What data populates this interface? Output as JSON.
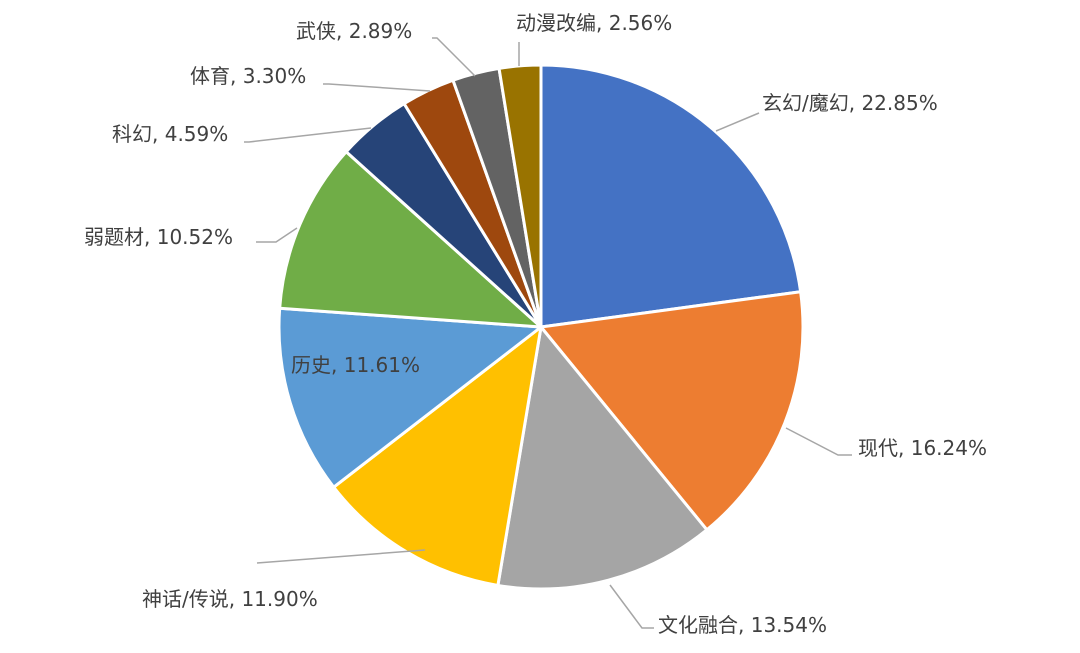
{
  "chart_data": {
    "type": "pie",
    "title": "",
    "start_angle_deg": 0,
    "direction": "clockwise",
    "label_format": "{name}, {percent}",
    "categories": [
      "玄幻/魔幻",
      "现代",
      "文化融合",
      "神话/传说",
      "历史",
      "弱题材",
      "科幻",
      "体育",
      "武侠",
      "动漫改编"
    ],
    "values": [
      22.85,
      16.24,
      13.54,
      11.9,
      11.61,
      10.52,
      4.59,
      3.3,
      2.89,
      2.56
    ],
    "percent_labels": [
      "22.85%",
      "16.24%",
      "13.54%",
      "11.90%",
      "11.61%",
      "10.52%",
      "4.59%",
      "3.30%",
      "2.89%",
      "2.56%"
    ],
    "colors": [
      "#4472C4",
      "#ED7D31",
      "#A5A5A5",
      "#FFC000",
      "#5B9BD5",
      "#70AD47",
      "#264478",
      "#9E480E",
      "#636363",
      "#997300"
    ],
    "label_placement": [
      "outside-right",
      "outside-right",
      "outside-right",
      "outside-left",
      "inside",
      "outside-left",
      "outside-left",
      "outside-left",
      "outside-left",
      "outside-top"
    ]
  }
}
